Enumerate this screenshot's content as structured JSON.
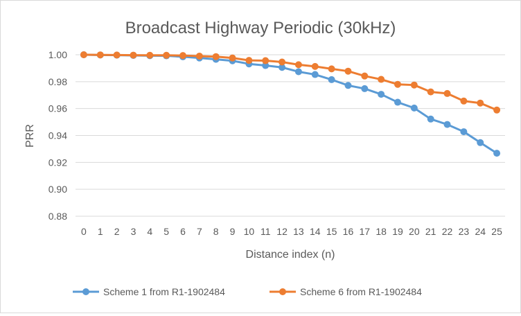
{
  "chart_data": {
    "type": "line",
    "title": "Broadcast Highway Periodic (30kHz)",
    "xlabel": "Distance index (n)",
    "ylabel": "PRR",
    "x": [
      "0",
      "1",
      "2",
      "3",
      "4",
      "5",
      "6",
      "7",
      "8",
      "9",
      "10",
      "11",
      "12",
      "13",
      "14",
      "15",
      "16",
      "17",
      "18",
      "19",
      "20",
      "21",
      "22",
      "23",
      "24",
      "25"
    ],
    "ylim": [
      0.88,
      1.0
    ],
    "yticks": [
      "0.88",
      "0.90",
      "0.92",
      "0.94",
      "0.96",
      "0.98",
      "1.00"
    ],
    "ytick_values": [
      0.88,
      0.9,
      0.92,
      0.94,
      0.96,
      0.98,
      1.0
    ],
    "grid": "horizontal",
    "legend_position": "bottom",
    "series": [
      {
        "name": "Scheme 1 from R1-1902484",
        "color": "#5b9bd5",
        "values": [
          1.0,
          0.9998,
          0.9997,
          0.9995,
          0.9993,
          0.9992,
          0.9985,
          0.9976,
          0.9966,
          0.9955,
          0.9932,
          0.992,
          0.9906,
          0.9874,
          0.9853,
          0.9815,
          0.9772,
          0.9748,
          0.9706,
          0.9647,
          0.9604,
          0.9522,
          0.9482,
          0.9428,
          0.9347,
          0.9268
        ]
      },
      {
        "name": "Scheme 6 from R1-1902484",
        "color": "#ed7d31",
        "values": [
          1.0,
          0.9999,
          0.9998,
          0.9997,
          0.9996,
          0.9996,
          0.9994,
          0.999,
          0.9986,
          0.9976,
          0.9958,
          0.9956,
          0.9946,
          0.9926,
          0.9913,
          0.9895,
          0.9878,
          0.9842,
          0.9817,
          0.978,
          0.9775,
          0.9724,
          0.9712,
          0.9656,
          0.9641,
          0.9589
        ]
      }
    ]
  }
}
